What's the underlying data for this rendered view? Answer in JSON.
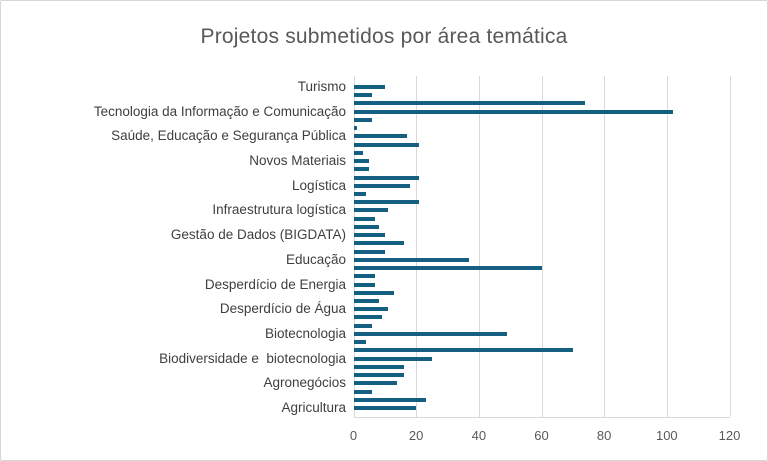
{
  "chart_data": {
    "type": "bar",
    "orientation": "horizontal",
    "title": "Projetos submetidos por área temática",
    "categories": [
      "Turismo",
      "Tecnologia da Informação e Comunicação",
      "Saúde, Educação e Segurança Pública",
      "Novos Materiais",
      "Logística",
      "Infraestrutura logística",
      "Gestão de Dados (BIGDATA)",
      "Educação",
      "Desperdício de Energia",
      "Desperdício de Água",
      "Biotecnologia",
      "Biodiversidade e  biotecnologia",
      "Agronegócios",
      "Agricultura"
    ],
    "bars_per_category": 3,
    "values": [
      [
        null,
        10,
        6
      ],
      [
        74,
        102,
        6
      ],
      [
        1,
        17,
        21
      ],
      [
        3,
        5,
        5
      ],
      [
        21,
        18,
        4
      ],
      [
        21,
        11,
        7
      ],
      [
        8,
        10,
        16
      ],
      [
        10,
        37,
        60
      ],
      [
        7,
        7,
        13
      ],
      [
        8,
        11,
        9
      ],
      [
        6,
        49,
        4
      ],
      [
        70,
        25,
        16
      ],
      [
        16,
        14,
        6
      ],
      [
        23,
        20,
        null
      ]
    ],
    "xlabel": "",
    "ylabel": "",
    "xlim": [
      0,
      120
    ],
    "xticks": [
      0,
      20,
      40,
      60,
      80,
      100,
      120
    ],
    "grid": "vertical",
    "legend": "none",
    "bar_color": "#156082",
    "gridline_color": "#d9d9d9",
    "title_color": "#595959",
    "tick_label_color": "#595959",
    "category_label_color": "#3f3f3f"
  }
}
